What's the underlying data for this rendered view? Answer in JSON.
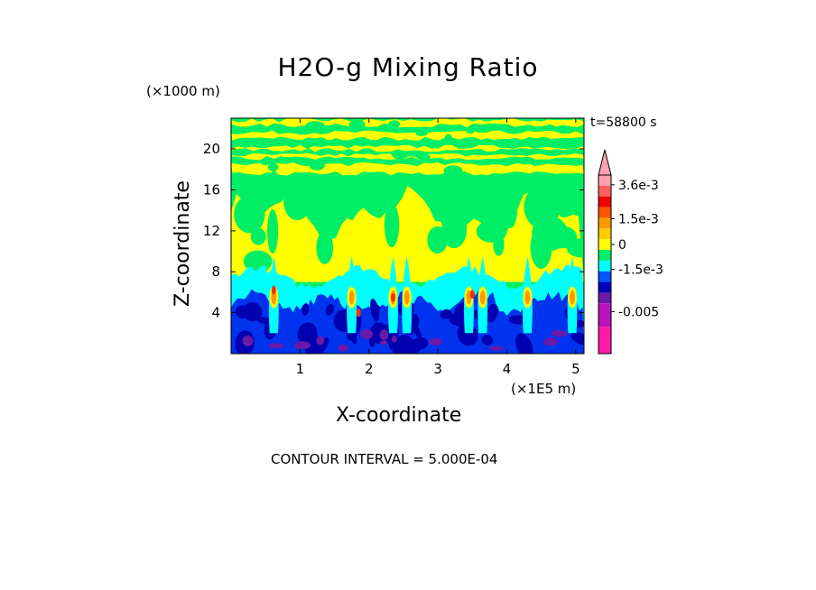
{
  "chart_data": {
    "type": "heatmap",
    "title": "H2O-g Mixing Ratio",
    "xlabel": "X-coordinate",
    "ylabel": "Z-coordinate",
    "x_unit": "(×1E5 m)",
    "y_unit": "(×1000 m)",
    "time_label": "t=58800 s",
    "footer": "CONTOUR INTERVAL = 5.000E-04",
    "xlim": [
      0,
      5.12
    ],
    "ylim": [
      0,
      23
    ],
    "x_ticks": [
      1,
      2,
      3,
      4,
      5
    ],
    "y_ticks": [
      4,
      8,
      12,
      16,
      20
    ],
    "colorbar": {
      "levels": [
        {
          "color": "#ffa0b0"
        },
        {
          "color": "#ff6060"
        },
        {
          "color": "#ee0000"
        },
        {
          "color": "#ff5500"
        },
        {
          "color": "#ff9900"
        },
        {
          "color": "#ffcc00"
        },
        {
          "color": "#ffff00"
        },
        {
          "color": "#00ee66"
        },
        {
          "color": "#00ffff"
        },
        {
          "color": "#0055ff"
        },
        {
          "color": "#0000bb"
        },
        {
          "color": "#6a1aa8"
        },
        {
          "color": "#bb11bb"
        },
        {
          "color": "#ff1aa8"
        }
      ],
      "labels": [
        "3.6e-3",
        "1.5e-3",
        "0",
        "-1.5e-3",
        "-0.005"
      ]
    },
    "band_colors": {
      "top_green": "#00ee66",
      "yellow": "#ffff00",
      "mid_green": "#00ee66",
      "cyan": "#00ffff",
      "blue": "#0033ee",
      "navy": "#0000b0",
      "purple": "#6a1aa8",
      "orange": "#ff9900",
      "red": "#ee3300"
    }
  }
}
